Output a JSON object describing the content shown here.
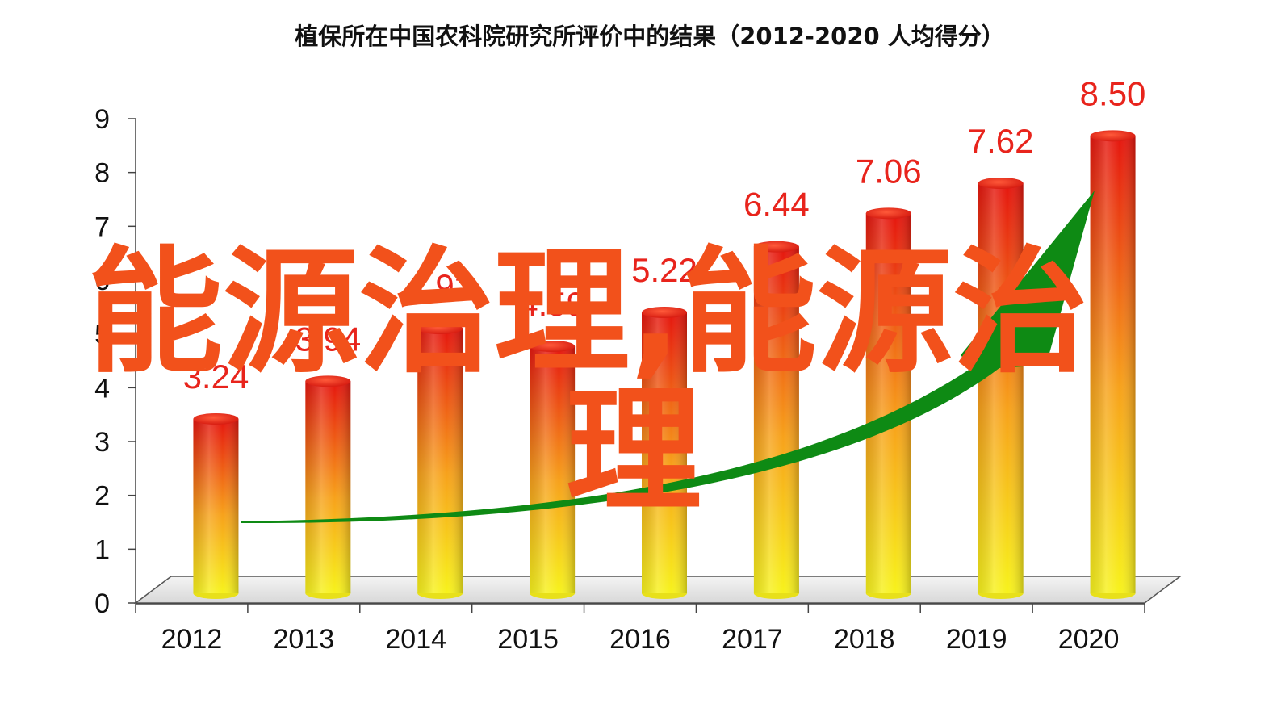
{
  "chart_data": {
    "type": "bar",
    "title": "植保所在中国农科院研究所评价中的结果（2012-2020 人均得分）",
    "categories": [
      "2012",
      "2013",
      "2014",
      "2015",
      "2016",
      "2017",
      "2018",
      "2019",
      "2020"
    ],
    "values": [
      3.24,
      3.94,
      4.92,
      4.59,
      5.22,
      6.44,
      7.06,
      7.62,
      8.5
    ],
    "value_labels": [
      "3.24",
      "3.94",
      "4.92",
      "4.59",
      "5.22",
      "6.44",
      "7.06",
      "7.62",
      "8.50"
    ],
    "y_ticks": [
      "0",
      "1",
      "2",
      "3",
      "4",
      "5",
      "6",
      "7",
      "8",
      "9"
    ],
    "ylim": [
      0,
      9
    ],
    "grid": false,
    "legend": "none",
    "trend_arrow": "upward",
    "colors": {
      "bar_top": "#e5160f",
      "bar_mid": "#f7a21b",
      "bar_bottom": "#f7f21c",
      "arrow": "#0e8a14",
      "label": "#e8241c",
      "overlay": "#f2511b"
    }
  },
  "overlay": {
    "line1": "能源治理,能源治",
    "line2": "理"
  }
}
